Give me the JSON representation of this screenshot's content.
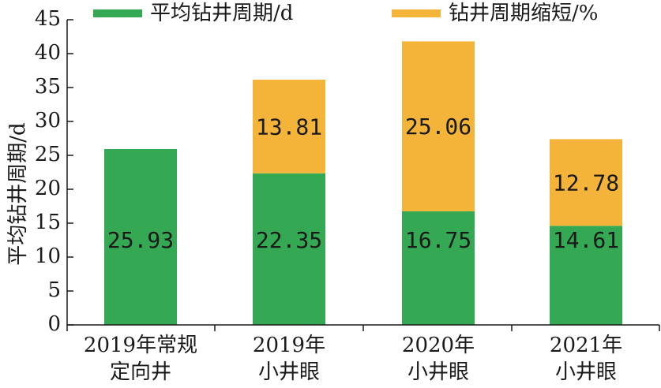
{
  "chart_data": {
    "type": "bar",
    "stacked": true,
    "categories": [
      [
        "2019年常规",
        "定向井"
      ],
      [
        "2019年",
        "小井眼"
      ],
      [
        "2020年",
        "小井眼"
      ],
      [
        "2021年",
        "小井眼"
      ]
    ],
    "series": [
      {
        "name": "平均钻井周期/d",
        "color": "#34a853",
        "values": [
          25.93,
          22.35,
          16.75,
          14.61
        ],
        "labels": [
          "25.93",
          "22.35",
          "16.75",
          "14.61"
        ]
      },
      {
        "name": "钻井周期缩短/%",
        "color": "#f4b43a",
        "values": [
          null,
          13.81,
          25.06,
          12.78
        ],
        "labels": [
          "",
          "13.81",
          "25.06",
          "12.78"
        ]
      }
    ],
    "ylabel": "平均钻井周期/d",
    "ylim": [
      0,
      45
    ],
    "yticks": [
      "0",
      "5",
      "10",
      "15",
      "20",
      "25",
      "30",
      "35",
      "40",
      "45"
    ],
    "legend_position": "top",
    "grid": false
  }
}
